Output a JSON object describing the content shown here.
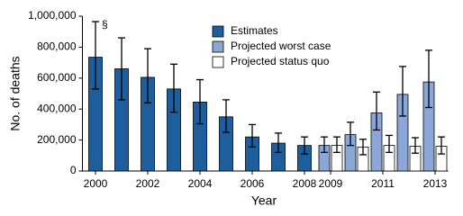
{
  "chart_data": {
    "type": "bar",
    "categories": [
      "2000",
      null,
      "2002",
      null,
      "2004",
      null,
      "2006",
      null,
      "2008",
      "2009",
      null,
      "2011",
      null,
      "2013"
    ],
    "x_label": "Year",
    "y_label": "No. of deaths",
    "annotation": "§",
    "edgecolor": "#000000",
    "series": [
      {
        "name": "Estimates",
        "color": "#1d5f9e",
        "values": [
          735000,
          660000,
          605000,
          530000,
          445000,
          350000,
          220000,
          180000,
          165000,
          null,
          null,
          null,
          null,
          null
        ],
        "lower": [
          530000,
          460000,
          440000,
          380000,
          305000,
          250000,
          155000,
          120000,
          110000,
          null,
          null,
          null,
          null,
          null
        ],
        "upper": [
          965000,
          860000,
          790000,
          690000,
          590000,
          460000,
          300000,
          245000,
          220000,
          null,
          null,
          null,
          null,
          null
        ]
      },
      {
        "name": "Projected worst case",
        "color": "#8ba7d8",
        "values": [
          null,
          null,
          null,
          null,
          null,
          null,
          null,
          null,
          null,
          165000,
          235000,
          375000,
          495000,
          575000
        ],
        "lower": [
          null,
          null,
          null,
          null,
          null,
          null,
          null,
          null,
          null,
          120000,
          165000,
          265000,
          355000,
          410000
        ],
        "upper": [
          null,
          null,
          null,
          null,
          null,
          null,
          null,
          null,
          null,
          220000,
          315000,
          510000,
          675000,
          780000
        ]
      },
      {
        "name": "Projected status quo",
        "color": "#ffffff",
        "values": [
          null,
          null,
          null,
          null,
          null,
          null,
          null,
          null,
          null,
          165000,
          155000,
          165000,
          160000,
          160000
        ],
        "lower": [
          null,
          null,
          null,
          null,
          null,
          null,
          null,
          null,
          null,
          120000,
          105000,
          120000,
          115000,
          110000
        ],
        "upper": [
          null,
          null,
          null,
          null,
          null,
          null,
          null,
          null,
          null,
          220000,
          205000,
          230000,
          215000,
          220000
        ]
      }
    ],
    "ylim": [
      0,
      1000000
    ],
    "yticks": [
      0,
      {
        "value": 200000,
        "label": "200,000"
      },
      {
        "value": 400000,
        "label": "400,000"
      },
      {
        "value": 600000,
        "label": "600,000"
      },
      {
        "value": 800000,
        "label": "800,000"
      },
      {
        "value": 1000000,
        "label": "1,000,000"
      }
    ],
    "grid": false,
    "legend": "top-center"
  }
}
